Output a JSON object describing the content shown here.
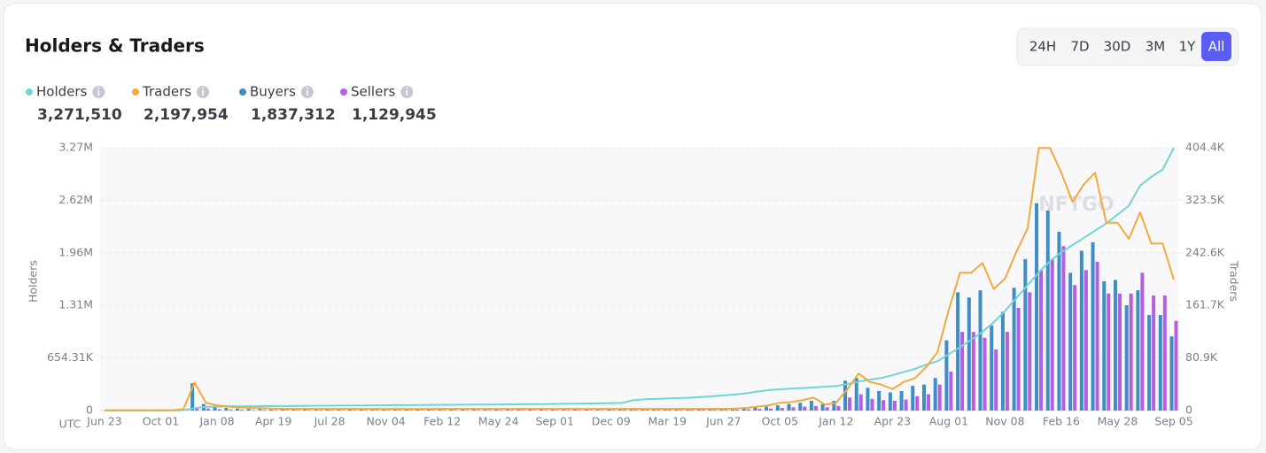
{
  "controls": {
    "ranges": [
      "24H",
      "7D",
      "30D",
      "3M",
      "1Y",
      "All"
    ],
    "selected": "All"
  },
  "chart_data": {
    "type": "combo",
    "title": "Holders & Traders",
    "ylabel": "Holders",
    "y2label": "Traders",
    "x_axis_note": "UTC",
    "watermark": "NFTGO",
    "categories": [
      "Jun 23",
      null,
      null,
      null,
      null,
      "Oct 01",
      null,
      null,
      null,
      null,
      "Jan 08",
      null,
      null,
      null,
      null,
      "Apr 19",
      null,
      null,
      null,
      null,
      "Jul 28",
      null,
      null,
      null,
      null,
      "Nov 04",
      null,
      null,
      null,
      null,
      "Feb 12",
      null,
      null,
      null,
      null,
      "May 24",
      null,
      null,
      null,
      null,
      "Sep 01",
      null,
      null,
      null,
      null,
      "Dec 09",
      null,
      null,
      null,
      null,
      "Mar 19",
      null,
      null,
      null,
      null,
      "Jun 27",
      null,
      null,
      null,
      null,
      "Oct 05",
      null,
      null,
      null,
      null,
      "Jan 12",
      null,
      null,
      null,
      null,
      "Apr 23",
      null,
      null,
      null,
      null,
      "Aug 01",
      null,
      null,
      null,
      null,
      "Nov 08",
      null,
      null,
      null,
      null,
      "Feb 16",
      null,
      null,
      null,
      null,
      "May 28",
      null,
      null,
      null,
      null,
      "Sep 05"
    ],
    "ylim": [
      0,
      3271550
    ],
    "yticks": [
      0,
      {
        "value": 654310,
        "label": "654.31K"
      },
      {
        "value": 1308620,
        "label": "1.31M"
      },
      {
        "value": 1962930,
        "label": "1.96M"
      },
      {
        "value": 2617240,
        "label": "2.62M"
      },
      {
        "value": 3271550,
        "label": "3.27M"
      }
    ],
    "y2lim": [
      0,
      404400
    ],
    "y2ticks": [
      0,
      {
        "value": 80900,
        "label": "80.9K"
      },
      {
        "value": 161700,
        "label": "161.7K"
      },
      {
        "value": 242600,
        "label": "242.6K"
      },
      {
        "value": 323500,
        "label": "323.5K"
      },
      {
        "value": 404400,
        "label": "404.4K"
      }
    ],
    "grid": true,
    "series": [
      {
        "name": "Holders",
        "type": "line",
        "color": "#6fd6d3",
        "total": "3,271,510",
        "values": [
          0,
          0,
          0,
          0,
          0,
          0,
          0,
          5000,
          30000,
          45000,
          50000,
          52000,
          53000,
          54000,
          55000,
          56000,
          57000,
          58000,
          59000,
          60000,
          61000,
          62000,
          63000,
          64000,
          65000,
          66000,
          67000,
          68000,
          69000,
          70000,
          71000,
          72000,
          73000,
          74000,
          75000,
          76000,
          77000,
          78000,
          79000,
          80000,
          82000,
          84000,
          86000,
          88000,
          90000,
          92000,
          95000,
          130000,
          140000,
          145000,
          150000,
          155000,
          160000,
          168000,
          178000,
          188000,
          200000,
          215000,
          235000,
          255000,
          265000,
          272000,
          280000,
          288000,
          296000,
          305000,
          330000,
          360000,
          385000,
          405000,
          440000,
          480000,
          520000,
          570000,
          615000,
          700000,
          790000,
          880000,
          980000,
          1100000,
          1240000,
          1400000,
          1560000,
          1720000,
          1860000,
          1970000,
          2060000,
          2150000,
          2240000,
          2330000,
          2440000,
          2550000,
          2800000,
          2910000,
          3000000,
          3271510
        ]
      },
      {
        "name": "Traders",
        "type": "line",
        "axis": "y2",
        "color": "#f5a93b",
        "total": "2,197,954",
        "values": [
          500,
          500,
          500,
          500,
          500,
          500,
          500,
          2000,
          43000,
          12000,
          8000,
          6000,
          5000,
          4000,
          3500,
          3000,
          2500,
          2500,
          2500,
          2500,
          2500,
          2500,
          2500,
          2500,
          2500,
          2500,
          2500,
          2500,
          2500,
          2500,
          2500,
          2500,
          2500,
          2500,
          2500,
          2500,
          2500,
          2500,
          2500,
          2500,
          2500,
          2500,
          2500,
          2500,
          2500,
          2500,
          2500,
          2500,
          2500,
          2500,
          2500,
          2500,
          2500,
          2500,
          2500,
          2500,
          3000,
          4000,
          6000,
          8000,
          12000,
          13000,
          16000,
          20000,
          9000,
          12000,
          33000,
          57000,
          44000,
          40000,
          33000,
          44000,
          50000,
          67000,
          90000,
          155000,
          212000,
          212000,
          227000,
          187000,
          203000,
          244000,
          280000,
          404000,
          404000,
          366000,
          321000,
          348000,
          366000,
          289000,
          289000,
          264000,
          305000,
          257000,
          257000,
          201000
        ]
      },
      {
        "name": "Buyers",
        "type": "bar",
        "axis": "y2",
        "color": "#3e8dc5",
        "total": "1,837,312",
        "values": [
          0,
          0,
          0,
          0,
          0,
          0,
          0,
          1000,
          42000,
          10000,
          6000,
          4000,
          3000,
          2500,
          2000,
          1500,
          1500,
          1500,
          1500,
          1500,
          1500,
          1500,
          1500,
          1500,
          1500,
          1500,
          1500,
          1500,
          1500,
          1500,
          1500,
          1500,
          1500,
          1500,
          1500,
          1500,
          1500,
          1500,
          1500,
          1500,
          1500,
          1500,
          1500,
          1500,
          1500,
          1500,
          2500,
          3000,
          2500,
          2500,
          2500,
          2000,
          2000,
          2000,
          2500,
          2500,
          3000,
          4000,
          5000,
          6000,
          8000,
          10000,
          12000,
          15000,
          10000,
          15000,
          46000,
          50000,
          35000,
          30000,
          28000,
          30000,
          38000,
          40000,
          50000,
          108000,
          182000,
          174000,
          185000,
          131000,
          152000,
          189000,
          233000,
          319000,
          308000,
          275000,
          212000,
          246000,
          259000,
          199000,
          201000,
          162000,
          185000,
          147000,
          147000,
          114000
        ]
      },
      {
        "name": "Sellers",
        "type": "bar",
        "axis": "y2",
        "color": "#b45ee0",
        "total": "1,129,945",
        "values": [
          0,
          0,
          0,
          0,
          0,
          0,
          0,
          0,
          4000,
          3000,
          2000,
          1500,
          1200,
          800,
          800,
          800,
          800,
          800,
          800,
          800,
          800,
          800,
          800,
          800,
          800,
          800,
          800,
          800,
          800,
          800,
          800,
          800,
          800,
          800,
          800,
          800,
          800,
          800,
          800,
          800,
          800,
          800,
          800,
          800,
          800,
          800,
          1200,
          1200,
          1200,
          1200,
          1200,
          1200,
          1200,
          1200,
          1200,
          1200,
          1500,
          2000,
          2500,
          3000,
          4000,
          5000,
          6000,
          7000,
          5000,
          7000,
          20000,
          25000,
          18000,
          16000,
          15000,
          17000,
          22000,
          25000,
          40000,
          60000,
          121000,
          121000,
          112000,
          94000,
          121000,
          158000,
          182000,
          216000,
          233000,
          253000,
          193000,
          216000,
          229000,
          180000,
          180000,
          180000,
          212000,
          177000,
          177000,
          138000
        ]
      }
    ]
  }
}
